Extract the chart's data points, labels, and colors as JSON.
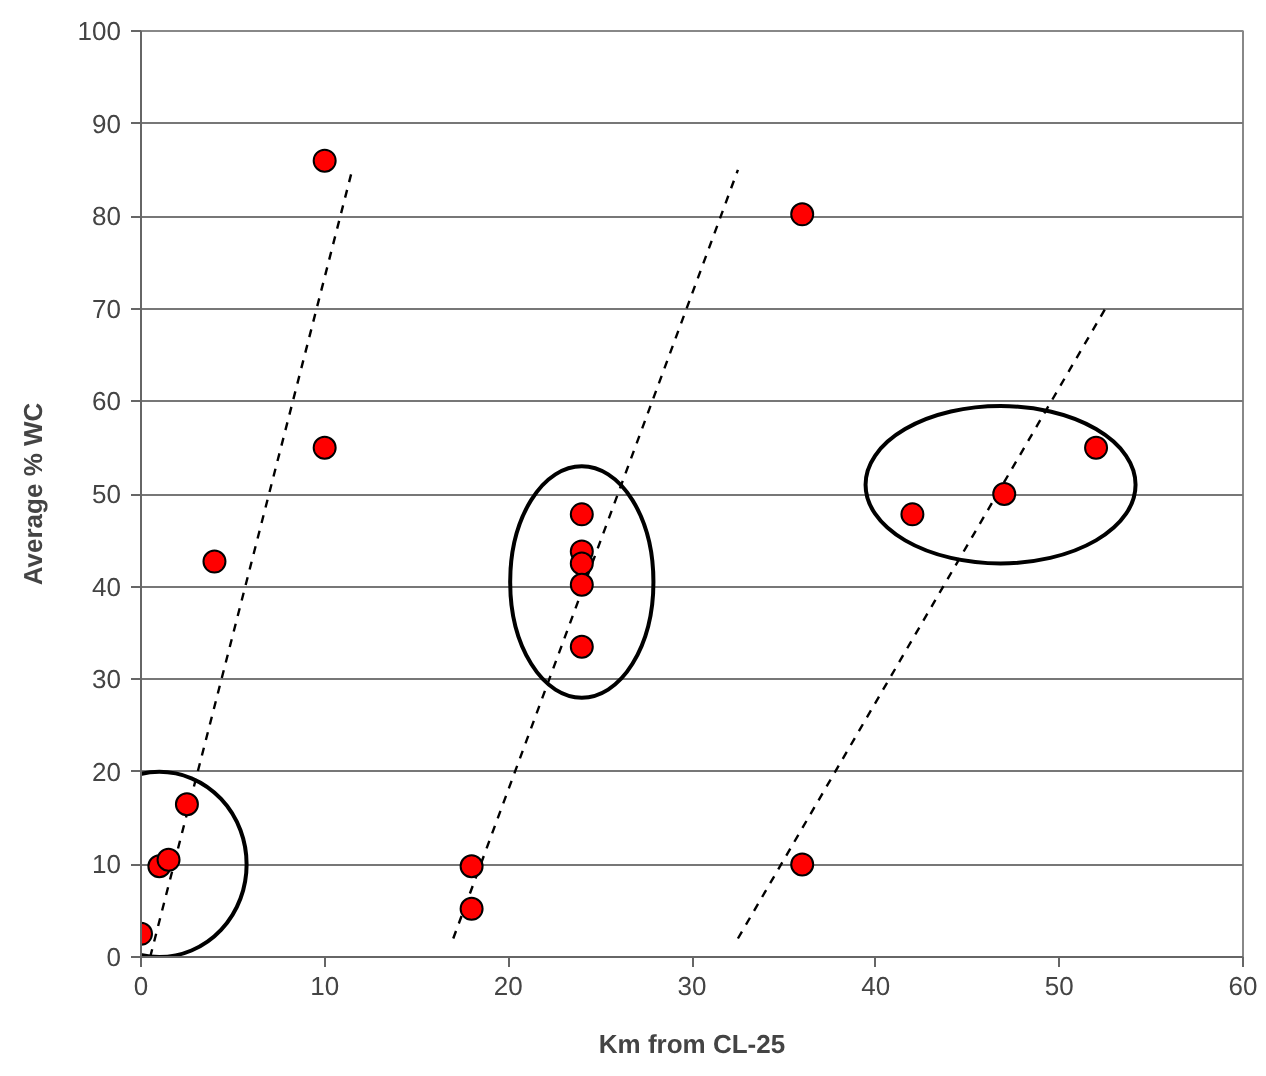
{
  "chart_data": {
    "type": "scatter",
    "xlabel": "Km from CL-25",
    "ylabel": "Average % WC",
    "xlim": [
      0,
      60
    ],
    "ylim": [
      0,
      100
    ],
    "xticks": [
      0,
      10,
      20,
      30,
      40,
      50,
      60
    ],
    "yticks": [
      0,
      10,
      20,
      30,
      40,
      50,
      60,
      70,
      80,
      90,
      100
    ],
    "grid": "y",
    "series": [
      {
        "color": "#ff0000",
        "marker": "circle",
        "x": [
          0,
          1,
          1.5,
          2.5,
          4,
          10,
          10,
          18,
          18,
          24,
          24,
          24,
          24,
          24,
          36,
          36,
          42,
          47,
          52
        ],
        "values": [
          2.5,
          9.8,
          10.5,
          16.5,
          42.7,
          86,
          55,
          9.8,
          5.2,
          47.8,
          43.8,
          42.5,
          40.2,
          33.5,
          80.2,
          10,
          47.8,
          50,
          55
        ]
      },
      {
        "type": "line",
        "color": "#000000",
        "line_style": "dashed",
        "marker": "none",
        "x": [
          0.5,
          11.5
        ],
        "values": [
          0,
          85
        ]
      },
      {
        "type": "line",
        "color": "#000000",
        "line_style": "dashed",
        "marker": "none",
        "x": [
          17,
          32.5
        ],
        "values": [
          2,
          85
        ]
      },
      {
        "type": "line",
        "color": "#000000",
        "line_style": "dashed",
        "marker": "none",
        "x": [
          32.5,
          52.5
        ],
        "values": [
          2,
          70
        ]
      }
    ]
  }
}
